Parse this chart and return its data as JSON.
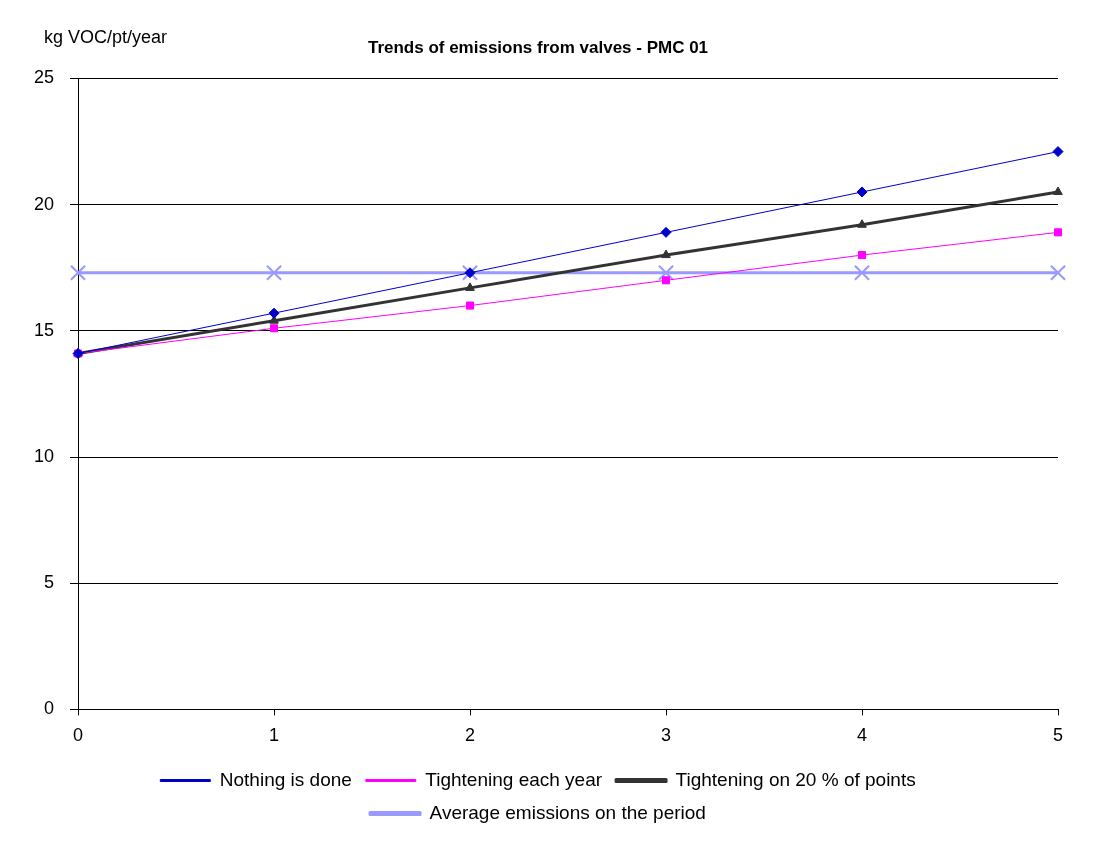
{
  "chart_data": {
    "type": "line",
    "title": "Trends of emissions from valves - PMC 01",
    "ylabel": "kg VOC/pt/year",
    "x": [
      0,
      1,
      2,
      3,
      4,
      5
    ],
    "xlim": [
      0,
      5
    ],
    "xticks": [
      0,
      1,
      2,
      3,
      4,
      5
    ],
    "ylim": [
      0,
      25
    ],
    "yticks": [
      0,
      5,
      10,
      15,
      20,
      25
    ],
    "grid": "y",
    "legend": "bottom",
    "series": [
      {
        "name": "Nothing is done",
        "color": "#0000cc",
        "marker": "diamond",
        "values": [
          14.1,
          15.7,
          17.3,
          18.9,
          20.5,
          22.1
        ]
      },
      {
        "name": "Tightening each year",
        "color": "#ff00ff",
        "marker": "square",
        "values": [
          14.1,
          15.1,
          16.0,
          17.0,
          18.0,
          18.9
        ]
      },
      {
        "name": "Tightening on 20 % of points",
        "color": "#333333",
        "marker": "triangle",
        "values": [
          14.1,
          15.4,
          16.7,
          18.0,
          19.2,
          20.5
        ]
      },
      {
        "name": "Average emissions on the period",
        "color": "#9999ff",
        "marker": "cross",
        "values": [
          17.3,
          17.3,
          17.3,
          17.3,
          17.3,
          17.3
        ]
      }
    ]
  }
}
